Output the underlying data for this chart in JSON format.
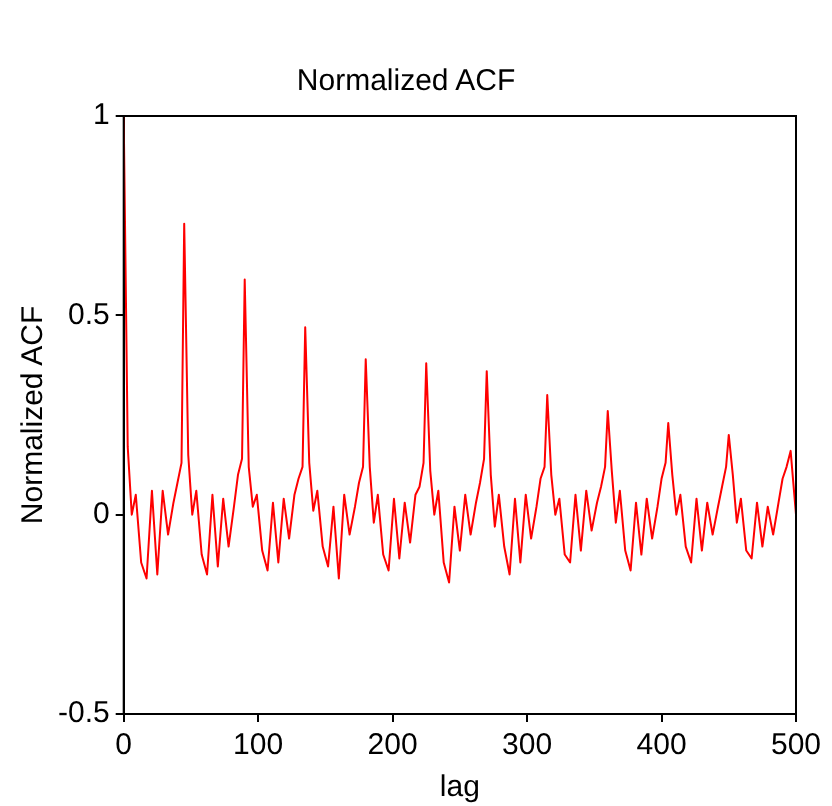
{
  "chart_data": {
    "type": "line",
    "title": "Normalized ACF",
    "xlabel": "lag",
    "ylabel": "Normalized ACF",
    "x": [
      0,
      3,
      6,
      9,
      13,
      17,
      21,
      25,
      29,
      33,
      37,
      40,
      43,
      45,
      48,
      51,
      54,
      58,
      62,
      66,
      70,
      74,
      78,
      82,
      85,
      88,
      90,
      93,
      96,
      99,
      103,
      107,
      111,
      115,
      119,
      123,
      127,
      130,
      133,
      135,
      138,
      141,
      144,
      148,
      152,
      156,
      160,
      164,
      168,
      172,
      175,
      178,
      180,
      183,
      186,
      189,
      193,
      197,
      201,
      205,
      209,
      213,
      217,
      220,
      223,
      225,
      228,
      231,
      234,
      238,
      242,
      246,
      250,
      254,
      258,
      262,
      265,
      268,
      270,
      273,
      276,
      279,
      283,
      287,
      291,
      295,
      299,
      303,
      307,
      310,
      313,
      315,
      318,
      321,
      324,
      328,
      332,
      336,
      340,
      344,
      348,
      352,
      355,
      358,
      360,
      363,
      366,
      369,
      373,
      377,
      381,
      385,
      389,
      393,
      397,
      400,
      403,
      405,
      408,
      411,
      414,
      418,
      422,
      426,
      430,
      434,
      438,
      442,
      445,
      448,
      450,
      453,
      456,
      459,
      463,
      467,
      471,
      475,
      479,
      483,
      487,
      490,
      493,
      496,
      500
    ],
    "series": [
      {
        "color": "#ff0000",
        "values": [
          1,
          0.17,
          0.0,
          0.05,
          -0.12,
          -0.16,
          0.06,
          -0.15,
          0.06,
          -0.05,
          0.03,
          0.08,
          0.13,
          0.73,
          0.15,
          0.0,
          0.06,
          -0.1,
          -0.15,
          0.05,
          -0.13,
          0.04,
          -0.08,
          0.02,
          0.1,
          0.14,
          0.59,
          0.12,
          0.02,
          0.05,
          -0.09,
          -0.14,
          0.03,
          -0.12,
          0.04,
          -0.06,
          0.05,
          0.09,
          0.12,
          0.47,
          0.13,
          0.01,
          0.06,
          -0.08,
          -0.13,
          0.02,
          -0.16,
          0.05,
          -0.05,
          0.02,
          0.08,
          0.12,
          0.39,
          0.12,
          -0.02,
          0.05,
          -0.1,
          -0.14,
          0.04,
          -0.11,
          0.03,
          -0.07,
          0.05,
          0.07,
          0.13,
          0.38,
          0.11,
          0.0,
          0.06,
          -0.12,
          -0.17,
          0.02,
          -0.09,
          0.05,
          -0.05,
          0.03,
          0.08,
          0.14,
          0.36,
          0.1,
          -0.03,
          0.05,
          -0.08,
          -0.15,
          0.04,
          -0.12,
          0.05,
          -0.06,
          0.02,
          0.09,
          0.12,
          0.3,
          0.1,
          0.0,
          0.04,
          -0.1,
          -0.12,
          0.05,
          -0.09,
          0.06,
          -0.04,
          0.03,
          0.07,
          0.12,
          0.26,
          0.11,
          -0.02,
          0.06,
          -0.09,
          -0.14,
          0.03,
          -0.1,
          0.04,
          -0.06,
          0.02,
          0.09,
          0.13,
          0.23,
          0.1,
          0.0,
          0.05,
          -0.08,
          -0.12,
          0.04,
          -0.09,
          0.03,
          -0.05,
          0.02,
          0.07,
          0.12,
          0.2,
          0.1,
          -0.02,
          0.04,
          -0.09,
          -0.11,
          0.03,
          -0.08,
          0.02,
          -0.05,
          0.03,
          0.09,
          0.12,
          0.16,
          0.0
        ]
      }
    ],
    "xlim": [
      0,
      500
    ],
    "xticks": [
      0,
      100,
      200,
      300,
      400,
      500
    ],
    "ylim": [
      -0.5,
      1
    ],
    "yticks": [
      -0.5,
      0,
      0.5,
      1
    ],
    "grid": false,
    "legend": false,
    "marker": "none",
    "line_style": "solid"
  }
}
